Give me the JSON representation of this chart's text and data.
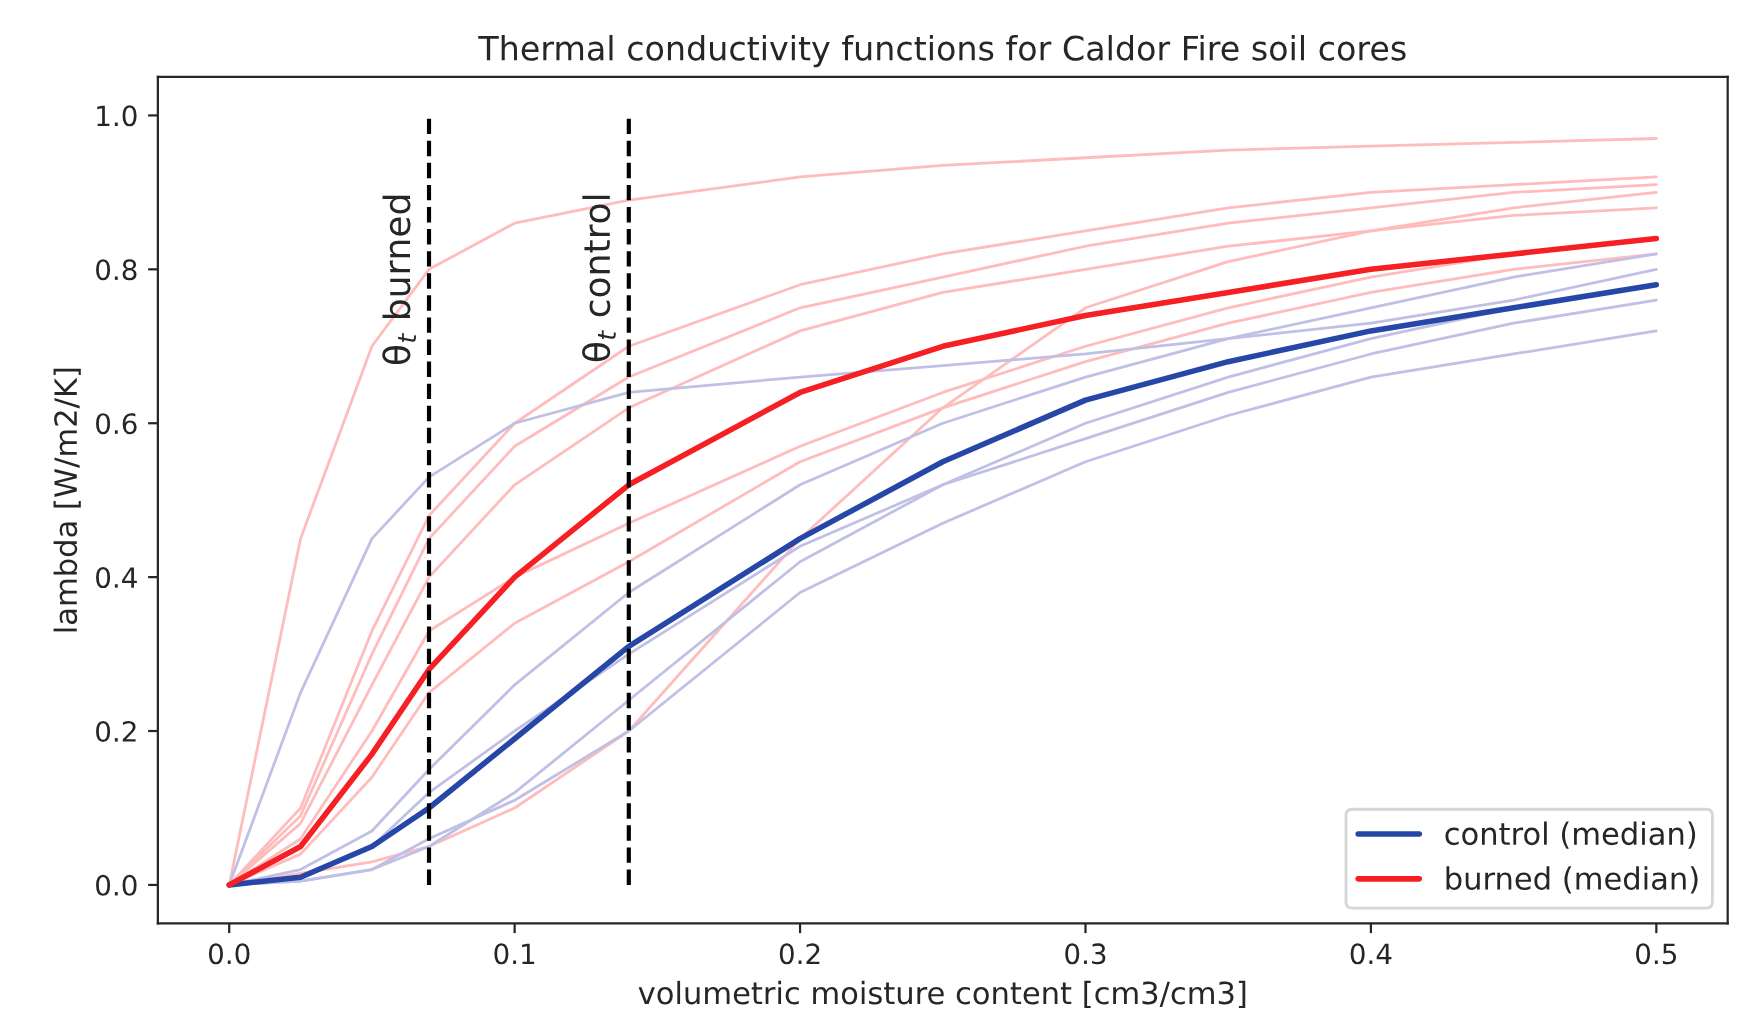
{
  "chart_data": {
    "type": "line",
    "title": "Thermal conductivity functions for Caldor Fire soil cores",
    "xlabel": "volumetric moisture content [cm3/cm3]",
    "ylabel": "lambda [W/m2/K]",
    "x": [
      0,
      0.025,
      0.05,
      0.07,
      0.1,
      0.14,
      0.2,
      0.25,
      0.3,
      0.35,
      0.4,
      0.45,
      0.5
    ],
    "series": [
      {
        "color": "#ffbcbc",
        "values": [
          0,
          0.45,
          0.7,
          0.8,
          0.86,
          0.89,
          0.92,
          0.935,
          0.945,
          0.955,
          0.96,
          0.965,
          0.97
        ]
      },
      {
        "color": "#ffbcbc",
        "values": [
          0,
          0.1,
          0.33,
          0.48,
          0.6,
          0.7,
          0.78,
          0.82,
          0.85,
          0.88,
          0.9,
          0.91,
          0.92
        ]
      },
      {
        "color": "#ffbcbc",
        "values": [
          0,
          0.09,
          0.3,
          0.45,
          0.57,
          0.66,
          0.75,
          0.79,
          0.83,
          0.86,
          0.88,
          0.9,
          0.91
        ]
      },
      {
        "color": "#ffbcbc",
        "values": [
          0,
          0.06,
          0.2,
          0.33,
          0.4,
          0.47,
          0.57,
          0.64,
          0.7,
          0.75,
          0.79,
          0.82,
          0.84
        ]
      },
      {
        "color": "#ffbcbc",
        "values": [
          0,
          null,
          0.03,
          0.05,
          0.1,
          0.2,
          0.45,
          0.62,
          0.75,
          0.81,
          0.85,
          0.88,
          0.9
        ]
      },
      {
        "color": "#ffbcbc",
        "values": [
          0,
          0.04,
          0.14,
          0.25,
          0.34,
          0.42,
          0.55,
          0.62,
          0.68,
          0.73,
          0.77,
          0.8,
          0.82
        ]
      },
      {
        "color": "#ffbcbc",
        "values": [
          0,
          0.08,
          0.26,
          0.4,
          0.52,
          0.62,
          0.72,
          0.77,
          0.8,
          0.83,
          0.85,
          0.87,
          0.88
        ]
      },
      {
        "color": "#c0c0e6",
        "values": [
          0,
          0.25,
          0.45,
          0.53,
          0.6,
          0.64,
          0.66,
          0.675,
          0.69,
          0.71,
          0.73,
          0.76,
          0.8
        ]
      },
      {
        "color": "#c0c0e6",
        "values": [
          0,
          0.02,
          0.07,
          0.15,
          0.26,
          0.38,
          0.52,
          0.6,
          0.66,
          0.71,
          0.75,
          0.79,
          0.82
        ]
      },
      {
        "color": "#c0c0e6",
        "values": [
          0,
          0.005,
          0.02,
          0.06,
          0.11,
          0.2,
          0.38,
          0.47,
          0.55,
          0.61,
          0.66,
          0.69,
          0.72
        ]
      },
      {
        "color": "#c0c0e6",
        "values": [
          0,
          0.005,
          0.02,
          0.05,
          0.12,
          0.24,
          0.42,
          0.52,
          0.6,
          0.66,
          0.71,
          0.75,
          0.78
        ]
      },
      {
        "color": "#c0c0e6",
        "values": [
          0,
          0.01,
          0.05,
          0.12,
          0.2,
          0.3,
          0.44,
          0.52,
          0.58,
          0.64,
          0.69,
          0.73,
          0.76
        ]
      },
      {
        "name": "control (median)",
        "color": "#2747a8",
        "values": [
          0,
          0.01,
          0.05,
          0.1,
          0.19,
          0.31,
          0.45,
          0.55,
          0.63,
          0.68,
          0.72,
          0.75,
          0.78
        ]
      },
      {
        "name": "burned (median)",
        "color": "#f51f24",
        "values": [
          0,
          0.05,
          0.17,
          0.28,
          0.4,
          0.52,
          0.64,
          0.7,
          0.74,
          0.77,
          0.8,
          0.82,
          0.84
        ]
      }
    ],
    "ref_lines": [
      {
        "axis": "x",
        "value": 0.07,
        "label": "θ$_{t}$ burned",
        "color": "#000000",
        "line_style": "dashed"
      },
      {
        "axis": "x",
        "value": 0.14,
        "label": "θ$_{t}$ control",
        "color": "#000000",
        "line_style": "dashed"
      }
    ],
    "xlim": [
      -0.025,
      0.525
    ],
    "xticks": [
      {
        "value": 0,
        "label": "0.0"
      },
      0.1,
      0.2,
      0.3,
      0.4,
      0.5
    ],
    "ylim": [
      -0.05,
      1.05
    ],
    "yticks": [
      {
        "value": 0,
        "label": "0.0"
      },
      0.2,
      0.4,
      0.6,
      0.8,
      {
        "value": 1,
        "label": "1.0"
      }
    ],
    "legend": "bottom right",
    "grid": false,
    "marker": "none",
    "line_style": "solid"
  }
}
